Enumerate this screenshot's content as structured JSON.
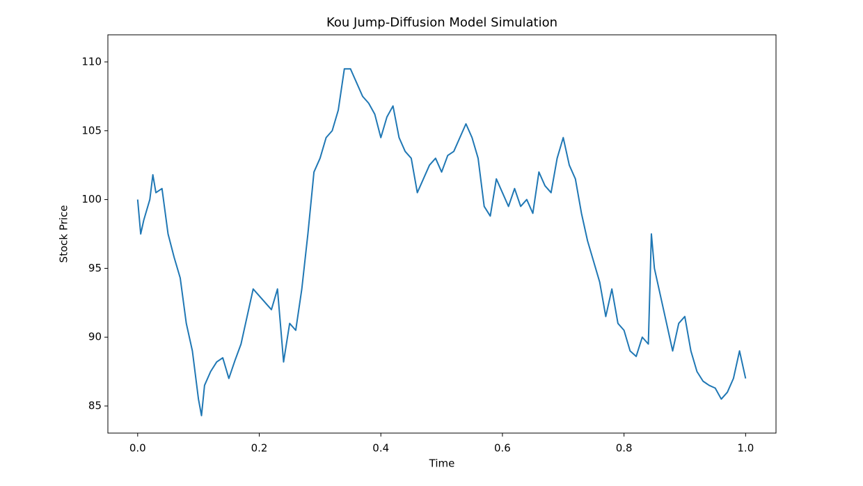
{
  "chart_data": {
    "type": "line",
    "title": "Kou Jump-Diffusion Model Simulation",
    "x_label": "Time",
    "y_label": "Stock Price",
    "x": [
      0,
      0.005,
      0.01,
      0.02,
      0.025,
      0.03,
      0.04,
      0.05,
      0.06,
      0.07,
      0.08,
      0.09,
      0.1,
      0.105,
      0.11,
      0.12,
      0.13,
      0.14,
      0.15,
      0.16,
      0.17,
      0.18,
      0.19,
      0.2,
      0.21,
      0.22,
      0.23,
      0.24,
      0.25,
      0.26,
      0.27,
      0.28,
      0.29,
      0.3,
      0.31,
      0.32,
      0.33,
      0.34,
      0.35,
      0.36,
      0.37,
      0.38,
      0.39,
      0.4,
      0.41,
      0.42,
      0.43,
      0.44,
      0.45,
      0.46,
      0.47,
      0.48,
      0.49,
      0.5,
      0.51,
      0.52,
      0.53,
      0.54,
      0.55,
      0.56,
      0.57,
      0.58,
      0.59,
      0.6,
      0.61,
      0.62,
      0.63,
      0.64,
      0.65,
      0.66,
      0.67,
      0.68,
      0.69,
      0.7,
      0.71,
      0.72,
      0.73,
      0.74,
      0.75,
      0.76,
      0.77,
      0.78,
      0.79,
      0.8,
      0.81,
      0.82,
      0.83,
      0.84,
      0.845,
      0.85,
      0.86,
      0.87,
      0.88,
      0.89,
      0.9,
      0.91,
      0.92,
      0.93,
      0.94,
      0.95,
      0.96,
      0.97,
      0.98,
      0.99,
      1.0
    ],
    "series": [
      {
        "name": "Stock Price",
        "color": "#1f77b4",
        "values": [
          100.0,
          97.5,
          98.5,
          100,
          101.8,
          100.5,
          100.8,
          97.5,
          95.8,
          94.3,
          91,
          89,
          85.5,
          84.3,
          86.5,
          87.5,
          88.2,
          88.5,
          87,
          88.3,
          89.5,
          91.5,
          93.5,
          93,
          92.5,
          92,
          93.5,
          88.2,
          91,
          90.5,
          93.5,
          97.5,
          102,
          103,
          104.5,
          105,
          106.5,
          109.5,
          109.5,
          108.5,
          107.5,
          107,
          106.2,
          104.5,
          106,
          106.8,
          104.5,
          103.5,
          103,
          100.5,
          101.5,
          102.5,
          103,
          102,
          103.2,
          103.5,
          104.5,
          105.5,
          104.5,
          103,
          99.5,
          98.8,
          101.5,
          100.5,
          99.5,
          100.8,
          99.5,
          100,
          99,
          102,
          101,
          100.5,
          103,
          104.5,
          102.5,
          101.5,
          99,
          97,
          95.5,
          94,
          91.5,
          93.5,
          91,
          90.5,
          89,
          88.6,
          90,
          89.5,
          97.5,
          95,
          93,
          91,
          89,
          91,
          91.5,
          89,
          87.5,
          86.8,
          86.5,
          86.3,
          85.5,
          86,
          87,
          89,
          87
        ]
      }
    ],
    "xlim": [
      -0.049,
      1.05
    ],
    "ylim": [
      83.03,
      111.97
    ],
    "xticks": [
      {
        "value": 0,
        "label": "0.0"
      },
      0.2,
      0.4,
      0.6,
      0.8,
      {
        "value": 1,
        "label": "1.0"
      }
    ],
    "yticks": [
      85,
      90,
      95,
      100,
      105,
      110
    ],
    "grid": false
  }
}
